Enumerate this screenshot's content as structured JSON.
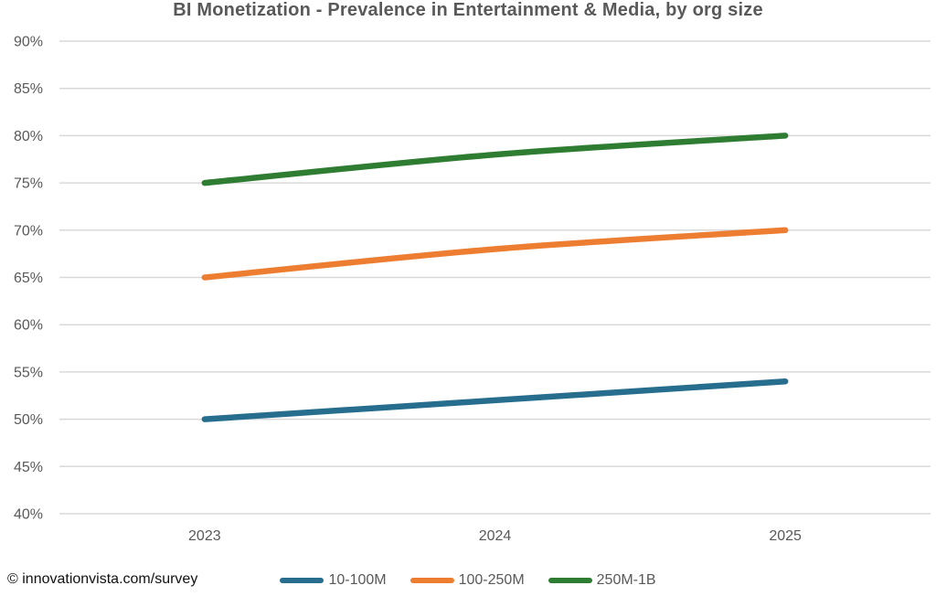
{
  "chart_data": {
    "type": "line",
    "title": "BI Monetization - Prevalence in Entertainment & Media, by org size",
    "x": [
      "2023",
      "2024",
      "2025"
    ],
    "series": [
      {
        "name": "10-100M",
        "color": "#276d8e",
        "values": [
          50,
          52,
          54
        ]
      },
      {
        "name": "100-250M",
        "color": "#ed7d31",
        "values": [
          65,
          68,
          70
        ]
      },
      {
        "name": "250M-1B",
        "color": "#2f7d32",
        "values": [
          75,
          78,
          80
        ]
      }
    ],
    "ylim": [
      40,
      90
    ],
    "yticks": [
      {
        "v": 90,
        "label": "90%"
      },
      {
        "v": 85,
        "label": "85%"
      },
      {
        "v": 80,
        "label": "80%"
      },
      {
        "v": 75,
        "label": "75%"
      },
      {
        "v": 70,
        "label": "70%"
      },
      {
        "v": 65,
        "label": "65%"
      },
      {
        "v": 60,
        "label": "60%"
      },
      {
        "v": 55,
        "label": "55%"
      },
      {
        "v": 50,
        "label": "50%"
      },
      {
        "v": 45,
        "label": "45%"
      },
      {
        "v": 40,
        "label": "40%"
      }
    ],
    "grid": true,
    "legend_position": "bottom"
  },
  "footer": {
    "attribution": "© innovationvista.com/survey"
  },
  "colors": {
    "title": "#595959",
    "axis_text": "#595959",
    "gridline": "#d9d9d9",
    "attribution_text": "#111111",
    "background": "#ffffff"
  }
}
